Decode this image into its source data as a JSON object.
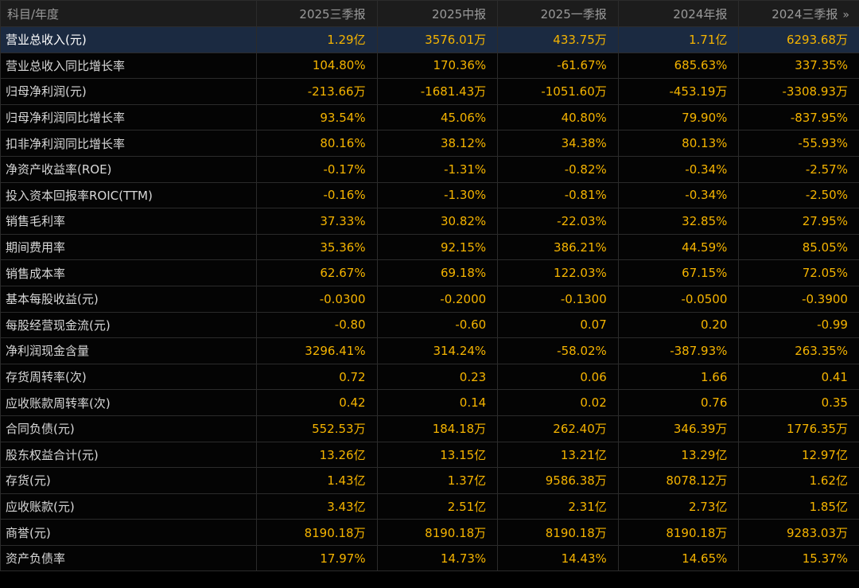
{
  "header": {
    "first": "科目/年度",
    "periods": [
      "2025三季报",
      "2025中报",
      "2025一季报",
      "2024年报",
      "2024三季报"
    ],
    "more_icon": "»"
  },
  "rows": [
    {
      "label": "营业总收入(元)",
      "values": [
        "1.29亿",
        "3576.01万",
        "433.75万",
        "1.71亿",
        "6293.68万"
      ]
    },
    {
      "label": "营业总收入同比增长率",
      "values": [
        "104.80%",
        "170.36%",
        "-61.67%",
        "685.63%",
        "337.35%"
      ]
    },
    {
      "label": "归母净利润(元)",
      "values": [
        "-213.66万",
        "-1681.43万",
        "-1051.60万",
        "-453.19万",
        "-3308.93万"
      ]
    },
    {
      "label": "归母净利润同比增长率",
      "values": [
        "93.54%",
        "45.06%",
        "40.80%",
        "79.90%",
        "-837.95%"
      ]
    },
    {
      "label": "扣非净利润同比增长率",
      "values": [
        "80.16%",
        "38.12%",
        "34.38%",
        "80.13%",
        "-55.93%"
      ]
    },
    {
      "label": "净资产收益率(ROE)",
      "values": [
        "-0.17%",
        "-1.31%",
        "-0.82%",
        "-0.34%",
        "-2.57%"
      ]
    },
    {
      "label": "投入资本回报率ROIC(TTM)",
      "values": [
        "-0.16%",
        "-1.30%",
        "-0.81%",
        "-0.34%",
        "-2.50%"
      ]
    },
    {
      "label": "销售毛利率",
      "values": [
        "37.33%",
        "30.82%",
        "-22.03%",
        "32.85%",
        "27.95%"
      ]
    },
    {
      "label": "期间费用率",
      "values": [
        "35.36%",
        "92.15%",
        "386.21%",
        "44.59%",
        "85.05%"
      ]
    },
    {
      "label": "销售成本率",
      "values": [
        "62.67%",
        "69.18%",
        "122.03%",
        "67.15%",
        "72.05%"
      ]
    },
    {
      "label": "基本每股收益(元)",
      "values": [
        "-0.0300",
        "-0.2000",
        "-0.1300",
        "-0.0500",
        "-0.3900"
      ]
    },
    {
      "label": "每股经营现金流(元)",
      "values": [
        "-0.80",
        "-0.60",
        "0.07",
        "0.20",
        "-0.99"
      ]
    },
    {
      "label": "净利润现金含量",
      "values": [
        "3296.41%",
        "314.24%",
        "-58.02%",
        "-387.93%",
        "263.35%"
      ]
    },
    {
      "label": "存货周转率(次)",
      "values": [
        "0.72",
        "0.23",
        "0.06",
        "1.66",
        "0.41"
      ]
    },
    {
      "label": "应收账款周转率(次)",
      "values": [
        "0.42",
        "0.14",
        "0.02",
        "0.76",
        "0.35"
      ]
    },
    {
      "label": "合同负债(元)",
      "values": [
        "552.53万",
        "184.18万",
        "262.40万",
        "346.39万",
        "1776.35万"
      ]
    },
    {
      "label": "股东权益合计(元)",
      "values": [
        "13.26亿",
        "13.15亿",
        "13.21亿",
        "13.29亿",
        "12.97亿"
      ]
    },
    {
      "label": "存货(元)",
      "values": [
        "1.43亿",
        "1.37亿",
        "9586.38万",
        "8078.12万",
        "1.62亿"
      ]
    },
    {
      "label": "应收账款(元)",
      "values": [
        "3.43亿",
        "2.51亿",
        "2.31亿",
        "2.73亿",
        "1.85亿"
      ]
    },
    {
      "label": "商誉(元)",
      "values": [
        "8190.18万",
        "8190.18万",
        "8190.18万",
        "8190.18万",
        "9283.03万"
      ]
    },
    {
      "label": "资产负债率",
      "values": [
        "17.97%",
        "14.73%",
        "14.43%",
        "14.65%",
        "15.37%"
      ]
    }
  ]
}
